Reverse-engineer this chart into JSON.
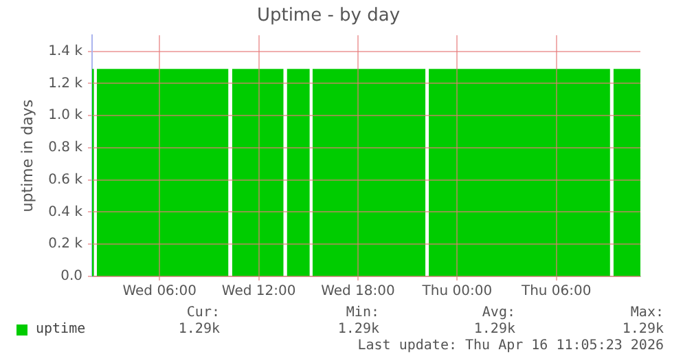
{
  "chart_data": {
    "type": "area",
    "title": "Uptime - by day",
    "ylabel": "uptime in days",
    "x": [
      "2026-04-15T01:55",
      "2026-04-15T02:02",
      "2026-04-15T02:07",
      "2026-04-15T02:12",
      "2026-04-15T10:10",
      "2026-04-15T10:16",
      "2026-04-15T10:23",
      "2026-04-15T13:30",
      "2026-04-15T13:36",
      "2026-04-15T13:42",
      "2026-04-15T15:05",
      "2026-04-15T15:10",
      "2026-04-15T15:15",
      "2026-04-15T22:05",
      "2026-04-15T22:11",
      "2026-04-15T22:17",
      "2026-04-16T09:15",
      "2026-04-16T09:21",
      "2026-04-16T09:27",
      "2026-04-16T11:05"
    ],
    "series": [
      {
        "name": "uptime",
        "color": "#00cc00",
        "values": [
          1290,
          1290,
          null,
          1290,
          1290,
          null,
          1290,
          1290,
          null,
          1290,
          1290,
          null,
          1290,
          1290,
          null,
          1290,
          1290,
          null,
          1290,
          1290
        ]
      }
    ],
    "xlim": [
      "2026-04-15T01:55",
      "2026-04-16T11:05"
    ],
    "xticks": [
      {
        "value": "2026-04-15T06:00",
        "label": "Wed 06:00"
      },
      {
        "value": "2026-04-15T12:00",
        "label": "Wed 12:00"
      },
      {
        "value": "2026-04-15T18:00",
        "label": "Wed 18:00"
      },
      {
        "value": "2026-04-16T00:00",
        "label": "Thu 00:00"
      },
      {
        "value": "2026-04-16T06:00",
        "label": "Thu 06:00"
      }
    ],
    "ylim": [
      0,
      1500
    ],
    "yticks": [
      {
        "value": 0,
        "label": "0.0"
      },
      {
        "value": 200,
        "label": "0.2 k"
      },
      {
        "value": 400,
        "label": "0.4 k"
      },
      {
        "value": 600,
        "label": "0.6 k"
      },
      {
        "value": 800,
        "label": "0.8 k"
      },
      {
        "value": 1000,
        "label": "1.0 k"
      },
      {
        "value": 1200,
        "label": "1.2 k"
      },
      {
        "value": 1400,
        "label": "1.4 k"
      }
    ],
    "grid": true,
    "legend": "bottom left",
    "marker": "none",
    "annotations": [
      "Cur:",
      "1.29k",
      "Min:",
      "1.29k",
      "Avg:",
      "1.29k",
      "Max:",
      "1.29k",
      "Last update: Thu Apr 16 11:05:23 2026"
    ]
  }
}
